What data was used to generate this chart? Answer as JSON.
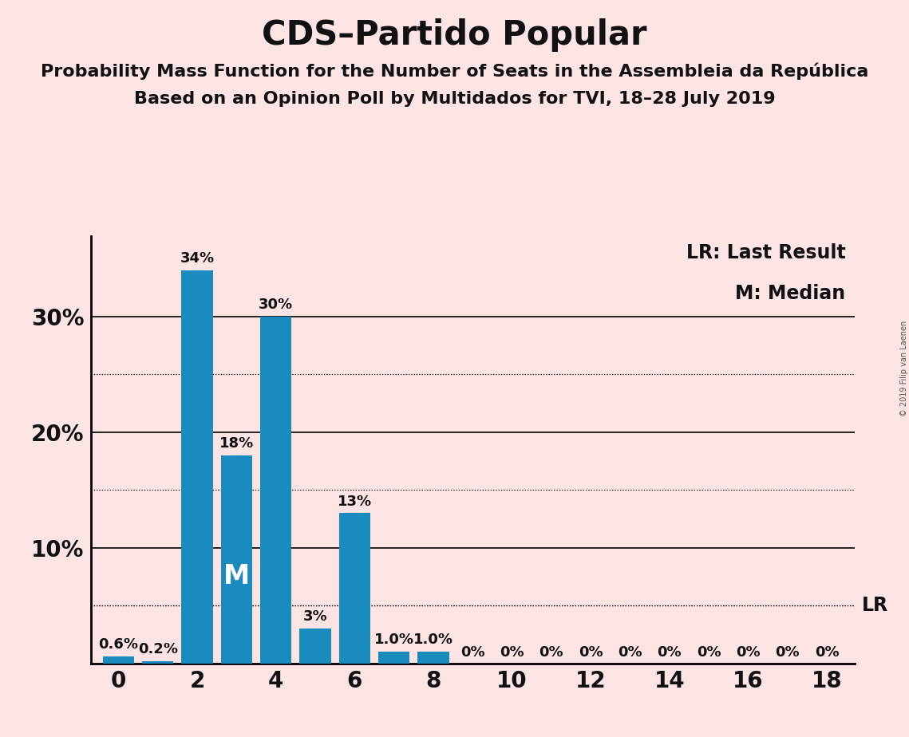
{
  "title": "CDS–Partido Popular",
  "subtitle1": "Probability Mass Function for the Number of Seats in the Assembleia da República",
  "subtitle2": "Based on an Opinion Poll by Multidados for TVI, 18–28 July 2019",
  "copyright": "© 2019 Filip van Laenen",
  "seats": [
    0,
    1,
    2,
    3,
    4,
    5,
    6,
    7,
    8,
    9,
    10,
    11,
    12,
    13,
    14,
    15,
    16,
    17,
    18
  ],
  "probabilities": [
    0.6,
    0.2,
    34,
    18,
    30,
    3,
    13,
    1.0,
    1.0,
    0,
    0,
    0,
    0,
    0,
    0,
    0,
    0,
    0,
    0
  ],
  "bar_color": "#1a8bbf",
  "background_color": "#fce4e4",
  "bar_labels": [
    "0.6%",
    "0.2%",
    "34%",
    "18%",
    "30%",
    "3%",
    "13%",
    "1.0%",
    "1.0%",
    "0%",
    "0%",
    "0%",
    "0%",
    "0%",
    "0%",
    "0%",
    "0%",
    "0%",
    "0%"
  ],
  "median_seat": 3,
  "lr_value": 5.0,
  "ylim": [
    0,
    37
  ],
  "yticks": [
    10,
    20,
    30
  ],
  "ytick_labels": [
    "10%",
    "20%",
    "30%"
  ],
  "dotted_lines": [
    5,
    15,
    25
  ],
  "solid_lines": [
    10,
    20,
    30
  ],
  "xtick_positions": [
    0,
    2,
    4,
    6,
    8,
    10,
    12,
    14,
    16,
    18
  ],
  "legend_lr": "LR: Last Result",
  "legend_m": "M: Median",
  "title_fontsize": 30,
  "subtitle_fontsize": 16,
  "axis_fontsize": 20,
  "bar_label_fontsize": 13,
  "legend_fontsize": 17
}
